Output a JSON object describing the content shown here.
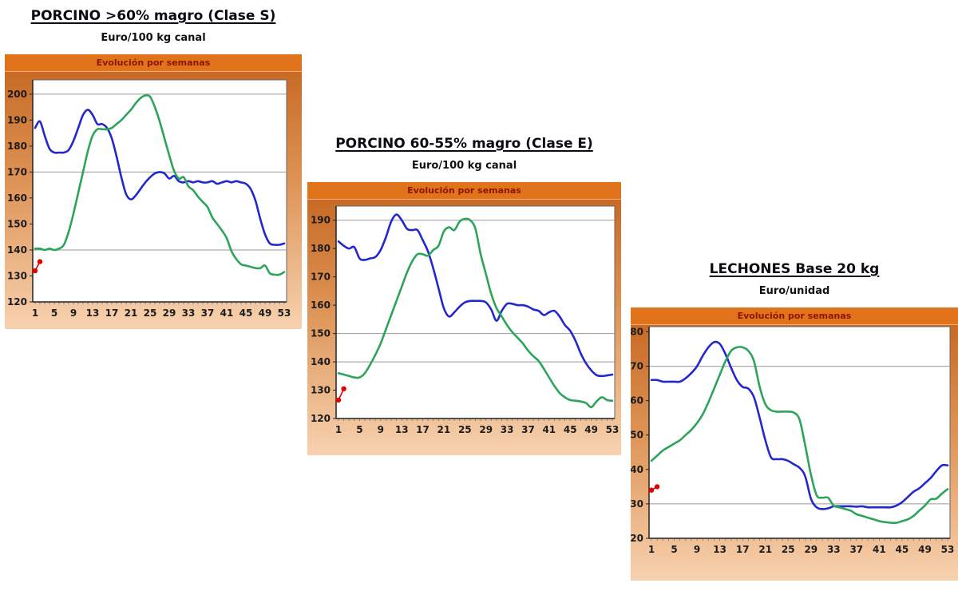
{
  "colors": {
    "blue": "#2427cd",
    "green": "#2ca45a",
    "red": "#e80000",
    "header_bg": "#e1731b",
    "header_text": "#8b1500",
    "panel_top": "#c4641e",
    "panel_bottom": "#f7d2b0",
    "gridline": "#9a9a9a",
    "axis": "#222222"
  },
  "chart_data": [
    {
      "type": "line",
      "title": "PORCINO >60% magro (Clase S)",
      "subtitle": "Euro/100 kg canal",
      "header": "Evolución por semanas",
      "x_range": [
        1,
        53
      ],
      "x_tick_labels": [
        1,
        5,
        9,
        13,
        17,
        21,
        25,
        29,
        33,
        37,
        41,
        45,
        49,
        53
      ],
      "ylim": [
        120,
        205.5
      ],
      "yticks": [
        120,
        130,
        140,
        150,
        160,
        170,
        180,
        190,
        200
      ],
      "gridlines": [
        140,
        170,
        200
      ],
      "series": [
        {
          "name": "blue",
          "color": "#2427cd",
          "start_week": 1,
          "values": [
            187,
            189.5,
            184,
            179,
            177.5,
            177.5,
            177.5,
            178.5,
            182,
            187,
            192,
            194,
            192,
            188.5,
            188.5,
            187,
            183,
            176,
            168,
            161.5,
            159.5,
            161,
            163.5,
            166,
            168,
            169.5,
            170,
            169.5,
            167.5,
            168.5,
            166.5,
            166,
            166.5,
            166,
            166.5,
            166,
            166,
            166.5,
            165.5,
            166,
            166.5,
            166,
            166.5,
            166,
            165.5,
            163.5,
            159,
            152,
            146,
            142.5,
            142,
            142,
            142.5
          ]
        },
        {
          "name": "green",
          "color": "#2ca45a",
          "start_week": 1,
          "values": [
            140.5,
            140.5,
            140,
            140.5,
            140,
            140.5,
            142,
            147,
            154,
            162,
            170,
            178,
            184,
            186.5,
            186.5,
            186.5,
            187,
            188.5,
            190,
            192,
            194,
            196.5,
            198.5,
            199.5,
            199,
            195,
            189.5,
            183,
            176.5,
            170.5,
            167.5,
            168,
            164.5,
            163,
            160.5,
            158.5,
            156.5,
            152.5,
            150,
            147.5,
            144.5,
            139.5,
            136.5,
            134.5,
            134,
            133.5,
            133,
            133,
            134,
            131,
            130.5,
            130.5,
            131.5
          ]
        },
        {
          "name": "red-marker",
          "color": "#e80000",
          "start_week": 1,
          "marker": true,
          "values": [
            132,
            135.5
          ]
        }
      ]
    },
    {
      "type": "line",
      "title": "PORCINO 60-55% magro (Clase E)",
      "subtitle": "Euro/100 kg canal",
      "header": "Evolución por semanas",
      "x_range": [
        1,
        53
      ],
      "x_tick_labels": [
        1,
        5,
        9,
        13,
        17,
        21,
        25,
        29,
        33,
        37,
        41,
        45,
        49,
        53
      ],
      "ylim": [
        120,
        195
      ],
      "yticks": [
        120,
        130,
        140,
        150,
        160,
        170,
        180,
        190
      ],
      "gridlines": [
        140,
        150,
        190
      ],
      "series": [
        {
          "name": "blue",
          "color": "#2427cd",
          "start_week": 1,
          "values": [
            182.5,
            181,
            180,
            180.5,
            176.5,
            176,
            176.5,
            177,
            179.5,
            184,
            189.5,
            192,
            190,
            187,
            186.5,
            186.5,
            183,
            179,
            173,
            166,
            159,
            156,
            157.5,
            159.5,
            161,
            161.5,
            161.5,
            161.5,
            161,
            158.5,
            154.5,
            158,
            160.5,
            160.5,
            160,
            160,
            159.5,
            158.5,
            158,
            156.5,
            157.5,
            158,
            156,
            153,
            151,
            147.5,
            143,
            139.5,
            137,
            135.3,
            135,
            135.2,
            135.5
          ]
        },
        {
          "name": "green",
          "color": "#2ca45a",
          "start_week": 1,
          "values": [
            136,
            135.5,
            135,
            134.5,
            134.5,
            136,
            139,
            142.5,
            146.5,
            151.5,
            156.5,
            161.5,
            166.5,
            171.5,
            175.5,
            178,
            178,
            177.5,
            179.5,
            181,
            186,
            187.5,
            186.5,
            189.5,
            190.5,
            190,
            187,
            178,
            171,
            164,
            159,
            156,
            153,
            150.5,
            148.5,
            146.5,
            144,
            142,
            140.3,
            137.5,
            134.5,
            131.5,
            129,
            127.5,
            126.5,
            126.3,
            126,
            125.5,
            124,
            126,
            127.5,
            126.5,
            126.3
          ]
        },
        {
          "name": "red-marker",
          "color": "#e80000",
          "start_week": 1,
          "marker": true,
          "values": [
            126.5,
            130.5
          ]
        }
      ]
    },
    {
      "type": "line",
      "title": "LECHONES Base 20 kg",
      "subtitle": "Euro/unidad",
      "header": "Evolución por semanas",
      "x_range": [
        1,
        53
      ],
      "x_tick_labels": [
        1,
        5,
        9,
        13,
        17,
        21,
        25,
        29,
        33,
        37,
        41,
        45,
        49,
        53
      ],
      "ylim": [
        20,
        81.5
      ],
      "yticks": [
        20,
        30,
        40,
        50,
        60,
        70,
        80
      ],
      "gridlines": [
        30,
        70
      ],
      "series": [
        {
          "name": "blue",
          "color": "#2427cd",
          "start_week": 1,
          "values": [
            66,
            66,
            65.5,
            65.5,
            65.5,
            65.5,
            66.5,
            68,
            70,
            73,
            75.5,
            77,
            76.5,
            73.5,
            69.5,
            66,
            64,
            63.5,
            61,
            55,
            48.5,
            43.5,
            43,
            43,
            42.5,
            41.5,
            40.5,
            38,
            31.5,
            29,
            28.5,
            28.7,
            29.3,
            29.3,
            29.3,
            29.3,
            29.2,
            29.3,
            29,
            29,
            29,
            29,
            29,
            29.5,
            30.5,
            32,
            33.5,
            34.5,
            36,
            37.5,
            39.5,
            41.2,
            41.2
          ]
        },
        {
          "name": "green",
          "color": "#2ca45a",
          "start_week": 1,
          "values": [
            42.5,
            44,
            45.5,
            46.5,
            47.5,
            48.5,
            50,
            51.5,
            53.5,
            56,
            59.5,
            63.5,
            67.5,
            71.5,
            74.5,
            75.5,
            75.5,
            74.5,
            71.5,
            64,
            59,
            57.2,
            56.8,
            56.8,
            56.8,
            56.5,
            54.5,
            47,
            38.5,
            32.5,
            31.8,
            31.8,
            29.5,
            29,
            28.5,
            28,
            27,
            26.5,
            26,
            25.5,
            25,
            24.7,
            24.5,
            24.5,
            25,
            25.5,
            26.5,
            28,
            29.5,
            31.3,
            31.5,
            33,
            34.3
          ]
        },
        {
          "name": "red-marker",
          "color": "#e80000",
          "start_week": 1,
          "marker": true,
          "values": [
            34,
            35
          ]
        }
      ]
    }
  ]
}
